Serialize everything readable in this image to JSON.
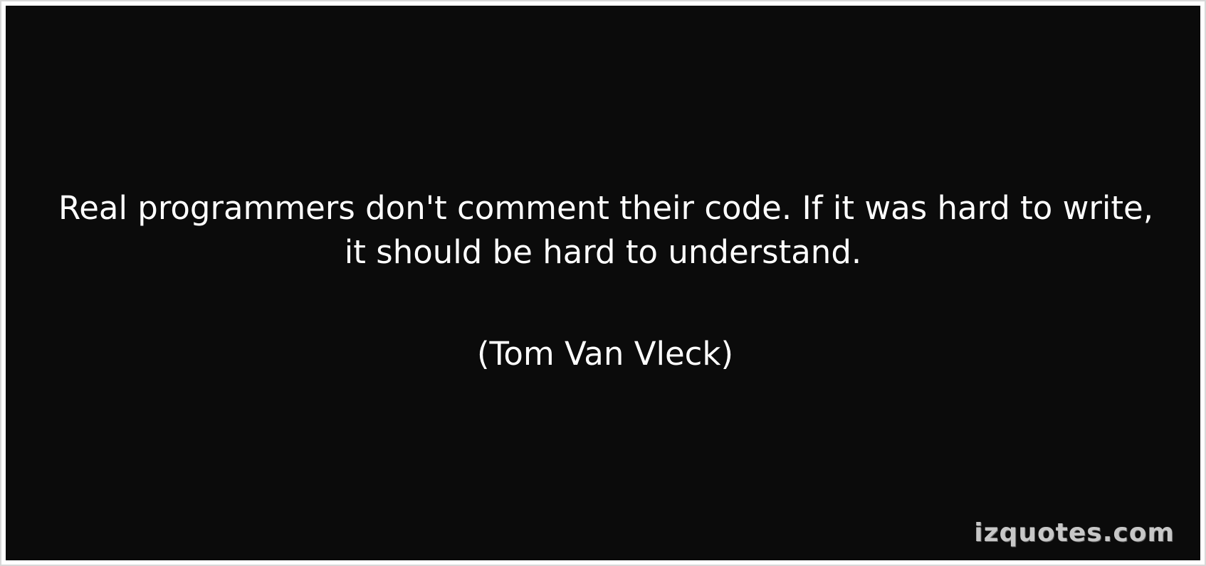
{
  "quote": {
    "line1": "Real programmers don't comment their code. If it was hard to write,",
    "line2": "it should be hard to understand."
  },
  "author": "(Tom Van Vleck)",
  "watermark": "izquotes.com",
  "colors": {
    "background": "#0b0b0b",
    "text": "#ffffff",
    "watermark": "#c7c7c7",
    "border": "#ffffff"
  }
}
